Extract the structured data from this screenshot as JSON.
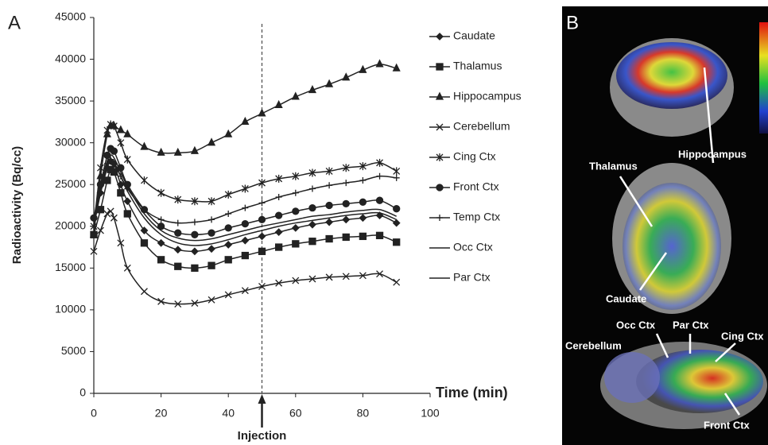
{
  "chart_data": {
    "type": "line",
    "panel_label": "A",
    "y_label": "Radioactivity (Bq/cc)",
    "x_label": "Time (min)",
    "annotation": {
      "text": "Injection",
      "x": 50
    },
    "x": [
      0,
      2,
      4,
      5,
      6,
      8,
      10,
      15,
      20,
      25,
      30,
      35,
      40,
      45,
      50,
      55,
      60,
      65,
      70,
      75,
      80,
      85,
      90
    ],
    "xlim": [
      0,
      100
    ],
    "xticks": [
      0,
      20,
      40,
      60,
      80,
      100
    ],
    "ylim": [
      0,
      45000
    ],
    "yticks": [
      0,
      5000,
      10000,
      15000,
      20000,
      25000,
      30000,
      35000,
      40000,
      45000
    ],
    "grid": false,
    "series": [
      {
        "name": "Caudate",
        "color": "#222222",
        "marker": "diamond",
        "values": [
          21000,
          24000,
          27000,
          27800,
          27500,
          25000,
          23000,
          19500,
          18000,
          17200,
          17000,
          17300,
          17800,
          18300,
          18800,
          19300,
          19800,
          20200,
          20500,
          20800,
          21000,
          21300,
          20400
        ]
      },
      {
        "name": "Thalamus",
        "color": "#222222",
        "marker": "square",
        "values": [
          19000,
          22000,
          25500,
          26800,
          26500,
          24000,
          21500,
          18000,
          16000,
          15200,
          15000,
          15300,
          16000,
          16500,
          17000,
          17500,
          17900,
          18200,
          18500,
          18700,
          18800,
          18900,
          18100
        ]
      },
      {
        "name": "Hippocampus",
        "color": "#222222",
        "marker": "triangle",
        "values": [
          19000,
          26000,
          31000,
          32000,
          32000,
          31500,
          31000,
          29500,
          28800,
          28800,
          29000,
          30000,
          31000,
          32500,
          33500,
          34500,
          35500,
          36300,
          37000,
          37800,
          38700,
          39400,
          38900
        ]
      },
      {
        "name": "Cerebellum",
        "color": "#222222",
        "marker": "x",
        "values": [
          17000,
          19500,
          21500,
          21800,
          21000,
          18000,
          15000,
          12200,
          11000,
          10700,
          10800,
          11200,
          11800,
          12300,
          12800,
          13200,
          13500,
          13700,
          13900,
          14000,
          14100,
          14300,
          13300
        ]
      },
      {
        "name": "Cing Ctx",
        "color": "#222222",
        "marker": "star",
        "values": [
          20000,
          27000,
          31500,
          32200,
          32000,
          30000,
          28000,
          25500,
          24000,
          23200,
          23000,
          23000,
          23800,
          24500,
          25200,
          25700,
          26000,
          26400,
          26600,
          27000,
          27200,
          27600,
          26600
        ]
      },
      {
        "name": "Front Ctx",
        "color": "#222222",
        "marker": "circle",
        "values": [
          21000,
          25000,
          28500,
          29300,
          29000,
          27000,
          25000,
          22000,
          20000,
          19200,
          19000,
          19200,
          19800,
          20300,
          20800,
          21300,
          21800,
          22200,
          22500,
          22700,
          22900,
          23100,
          22100
        ]
      },
      {
        "name": "Temp Ctx",
        "color": "#222222",
        "marker": "plus",
        "values": [
          20000,
          24000,
          27500,
          28000,
          27500,
          26000,
          24500,
          22000,
          20800,
          20400,
          20500,
          20800,
          21500,
          22200,
          22800,
          23500,
          24000,
          24500,
          24900,
          25200,
          25500,
          26000,
          25800
        ]
      },
      {
        "name": "Occ Ctx",
        "color": "#222222",
        "marker": "none",
        "values": [
          20500,
          24000,
          27300,
          28000,
          27700,
          26000,
          24200,
          21000,
          19000,
          18000,
          17700,
          17900,
          18400,
          19000,
          19500,
          20000,
          20400,
          20700,
          21000,
          21300,
          21500,
          21600,
          20800
        ]
      },
      {
        "name": "Par Ctx",
        "color": "#222222",
        "marker": "none",
        "values": [
          20500,
          24500,
          27800,
          28500,
          28200,
          26500,
          24800,
          21500,
          19500,
          18600,
          18300,
          18500,
          19000,
          19500,
          20000,
          20400,
          20800,
          21200,
          21400,
          21700,
          21900,
          22000,
          21200
        ]
      }
    ]
  },
  "panel_b": {
    "panel_label": "B",
    "labels": [
      "Hippocampus",
      "Thalamus",
      "Caudate",
      "Occ Ctx",
      "Par Ctx",
      "Cing Ctx",
      "Cerebellum",
      "Front Ctx"
    ]
  }
}
